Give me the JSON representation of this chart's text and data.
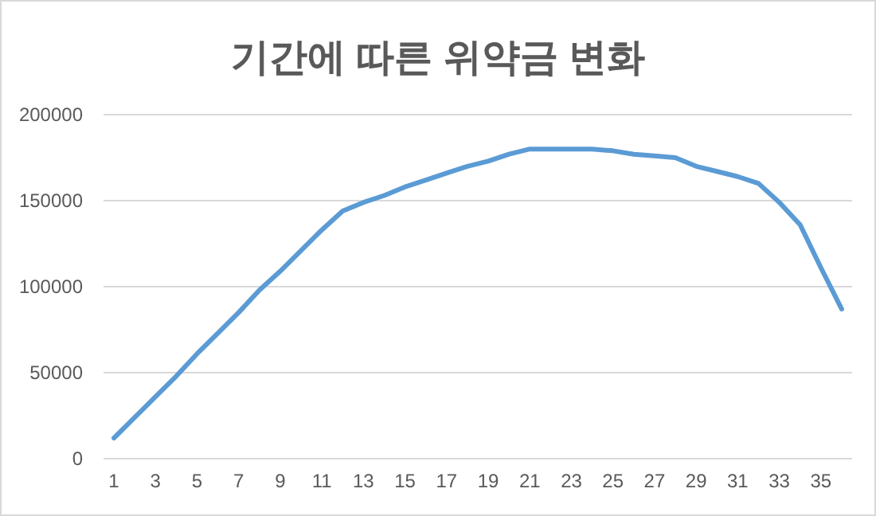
{
  "chart_data": {
    "type": "line",
    "title": "기간에 따른 위약금 변화",
    "x": [
      1,
      2,
      3,
      4,
      5,
      6,
      7,
      8,
      9,
      10,
      11,
      12,
      13,
      14,
      15,
      16,
      17,
      18,
      19,
      20,
      21,
      22,
      23,
      24,
      25,
      26,
      27,
      28,
      29,
      30,
      31,
      32,
      33,
      34,
      35,
      36
    ],
    "xlim": [
      0.5,
      36.5
    ],
    "xticks": [
      1,
      3,
      5,
      7,
      9,
      11,
      13,
      15,
      17,
      19,
      21,
      23,
      25,
      27,
      29,
      31,
      33,
      35
    ],
    "series": [
      {
        "color": "#5b9bd5",
        "values": [
          12000,
          24000,
          36000,
          48000,
          61000,
          73000,
          85000,
          98000,
          109000,
          121000,
          133000,
          144000,
          149000,
          153000,
          158000,
          162000,
          166000,
          170000,
          173000,
          177000,
          180000,
          180000,
          180000,
          180000,
          179000,
          177000,
          176000,
          175000,
          170000,
          167000,
          164000,
          160000,
          149000,
          136000,
          111000,
          87000
        ]
      }
    ],
    "ylim": [
      0,
      200000
    ],
    "yticks": [
      0,
      50000,
      100000,
      150000,
      200000
    ],
    "grid": "y",
    "marker": "none",
    "line_style": "solid"
  }
}
